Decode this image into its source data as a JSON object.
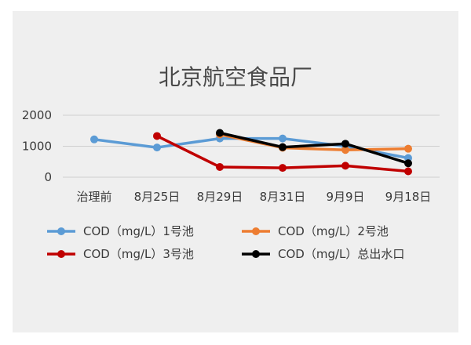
{
  "chart_data": {
    "type": "line",
    "title": "北京航空食品厂",
    "categories": [
      "治理前",
      "8月25日",
      "8月29日",
      "8月31日",
      "9月9日",
      "9月18日"
    ],
    "yticks": [
      0,
      1000,
      2000
    ],
    "ylim": [
      0,
      2000
    ],
    "grid": true,
    "legend_position": "bottom",
    "series": [
      {
        "name": "COD（mg/L）1号池",
        "color": "#5b9bd5",
        "values": [
          1220,
          960,
          1250,
          1250,
          1000,
          620
        ]
      },
      {
        "name": "COD（mg/L）2号池",
        "color": "#ed7d31",
        "values": [
          null,
          null,
          1380,
          950,
          880,
          920
        ]
      },
      {
        "name": "COD（mg/L）3号池",
        "color": "#c00000",
        "values": [
          null,
          1330,
          330,
          300,
          370,
          190
        ]
      },
      {
        "name": "COD（mg/L）总出水口",
        "color": "#000000",
        "values": [
          null,
          null,
          1430,
          970,
          1080,
          450
        ]
      }
    ]
  }
}
